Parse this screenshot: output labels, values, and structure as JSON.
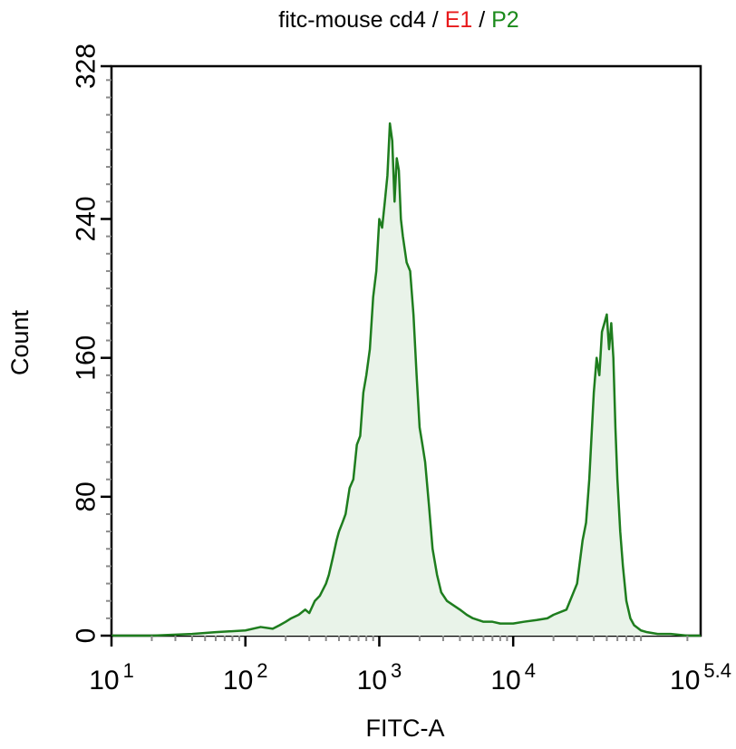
{
  "title": {
    "parts": [
      {
        "text": "fitc-mouse cd4",
        "color": "#000000"
      },
      {
        "text": " / ",
        "color": "#000000"
      },
      {
        "text": "E1",
        "color": "#e8191b"
      },
      {
        "text": " / ",
        "color": "#000000"
      },
      {
        "text": "P2",
        "color": "#1b8a1b"
      }
    ]
  },
  "chart_data": {
    "type": "area",
    "title": "fitc-mouse cd4 / E1 / P2",
    "xlabel": "FITC-A",
    "ylabel": "Count",
    "xscale": "log",
    "xlim": [
      10,
      251188.64
    ],
    "ylim": [
      0,
      328
    ],
    "grid": false,
    "x_ticks": [
      {
        "base": "10",
        "exp": "1"
      },
      {
        "base": "10",
        "exp": "2"
      },
      {
        "base": "10",
        "exp": "3"
      },
      {
        "base": "10",
        "exp": "4"
      },
      {
        "base": "10",
        "exp": "5.4"
      }
    ],
    "y_ticks": [
      "0",
      "80",
      "160",
      "240",
      "328"
    ],
    "line_color": "#1e7d1e",
    "fill_color": "#e9f3e9",
    "series": [
      {
        "x": [
          10,
          20,
          40,
          60,
          100,
          130,
          160,
          180,
          200,
          220,
          250,
          280,
          300,
          330,
          360,
          400,
          420,
          450,
          480,
          500,
          530,
          560,
          600,
          640,
          680,
          720,
          760,
          800,
          850,
          900,
          950,
          1000,
          1050,
          1100,
          1150,
          1200,
          1250,
          1300,
          1350,
          1400,
          1450,
          1500,
          1600,
          1700,
          1800,
          1900,
          2000,
          2100,
          2200,
          2350,
          2500,
          2700,
          2900,
          3200,
          3500,
          4000,
          4500,
          5000,
          6000,
          7000,
          8000,
          10000,
          12000,
          15000,
          18000,
          20000,
          25000,
          30000,
          33000,
          35000,
          37000,
          40000,
          42000,
          44000,
          46000,
          48000,
          50000,
          52000,
          54000,
          56000,
          58000,
          60000,
          63000,
          66000,
          70000,
          75000,
          80000,
          90000,
          100000,
          120000,
          150000,
          200000,
          251188
        ],
        "values": [
          0,
          0,
          1,
          2,
          3,
          5,
          4,
          6,
          8,
          10,
          12,
          15,
          13,
          20,
          23,
          30,
          35,
          45,
          55,
          60,
          65,
          70,
          85,
          90,
          110,
          115,
          140,
          150,
          165,
          195,
          210,
          240,
          235,
          250,
          265,
          295,
          285,
          250,
          275,
          268,
          240,
          230,
          215,
          210,
          185,
          150,
          120,
          110,
          100,
          75,
          50,
          35,
          25,
          20,
          18,
          15,
          12,
          10,
          8,
          8,
          7,
          7,
          8,
          9,
          10,
          12,
          15,
          30,
          55,
          65,
          90,
          140,
          160,
          150,
          175,
          180,
          185,
          165,
          180,
          160,
          120,
          90,
          60,
          40,
          20,
          10,
          6,
          3,
          2,
          1,
          1,
          0,
          0
        ]
      }
    ]
  }
}
